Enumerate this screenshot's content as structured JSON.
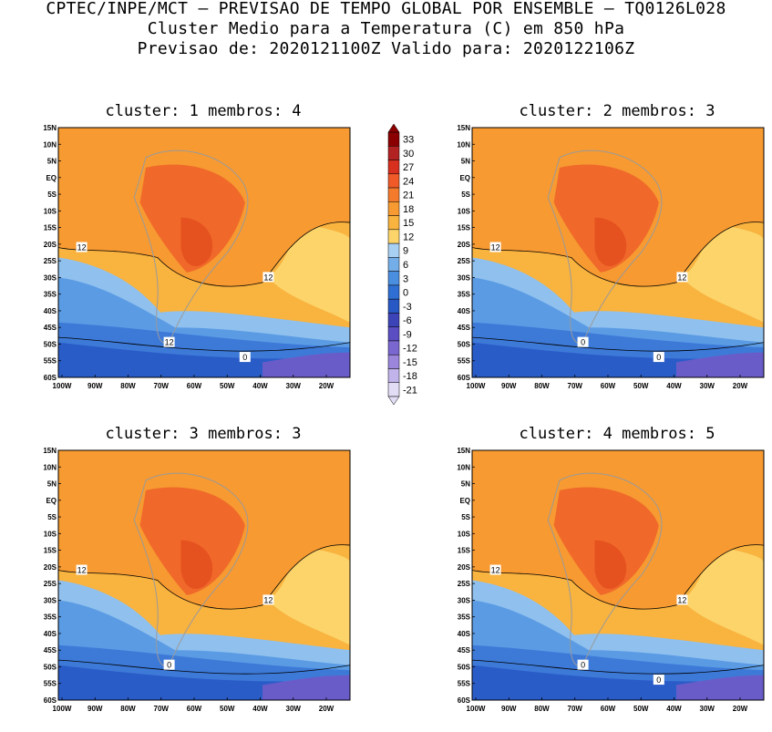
{
  "header": {
    "line1": "CPTEC/INPE/MCT – PREVISAO DE TEMPO GLOBAL POR ENSEMBLE – TQ0126L028",
    "line2": "Cluster Medio para a Temperatura (C) em 850 hPa",
    "line3": "Previsao de: 2020121100Z   Valido para: 2020122106Z"
  },
  "axes": {
    "lat_labels": [
      "15N",
      "10N",
      "5N",
      "EQ",
      "5S",
      "10S",
      "15S",
      "20S",
      "25S",
      "30S",
      "35S",
      "40S",
      "45S",
      "50S",
      "55S",
      "60S"
    ],
    "lon_labels": [
      "100W",
      "90W",
      "80W",
      "70W",
      "60W",
      "50W",
      "40W",
      "30W",
      "20W"
    ]
  },
  "panels": [
    {
      "title": "cluster: 1   membros: 4",
      "contour_labels": [
        "12",
        "12",
        "12",
        "0"
      ]
    },
    {
      "title": "cluster: 2   membros: 3",
      "contour_labels": [
        "12",
        "12",
        "0",
        "0"
      ]
    },
    {
      "title": "cluster: 3   membros: 3",
      "contour_labels": [
        "12",
        "12",
        "0"
      ]
    },
    {
      "title": "cluster: 4   membros: 5",
      "contour_labels": [
        "12",
        "12",
        "0",
        "0"
      ]
    }
  ],
  "colorbar": {
    "levels": [
      "33",
      "30",
      "27",
      "24",
      "21",
      "18",
      "15",
      "12",
      "9",
      "6",
      "3",
      "0",
      "-3",
      "-6",
      "-9",
      "-12",
      "-15",
      "-18",
      "-21"
    ],
    "colors": [
      "#8b0000",
      "#b22222",
      "#d7301f",
      "#ef5a28",
      "#f47a2c",
      "#f79a31",
      "#f9b33f",
      "#fcd46a",
      "#a7d0f2",
      "#74aee9",
      "#4a8ee0",
      "#2f6fd3",
      "#2858c4",
      "#3d44b8",
      "#5a4ec2",
      "#7a67cf",
      "#9b86dc",
      "#c1b4ea",
      "#e2dcf5"
    ]
  }
}
